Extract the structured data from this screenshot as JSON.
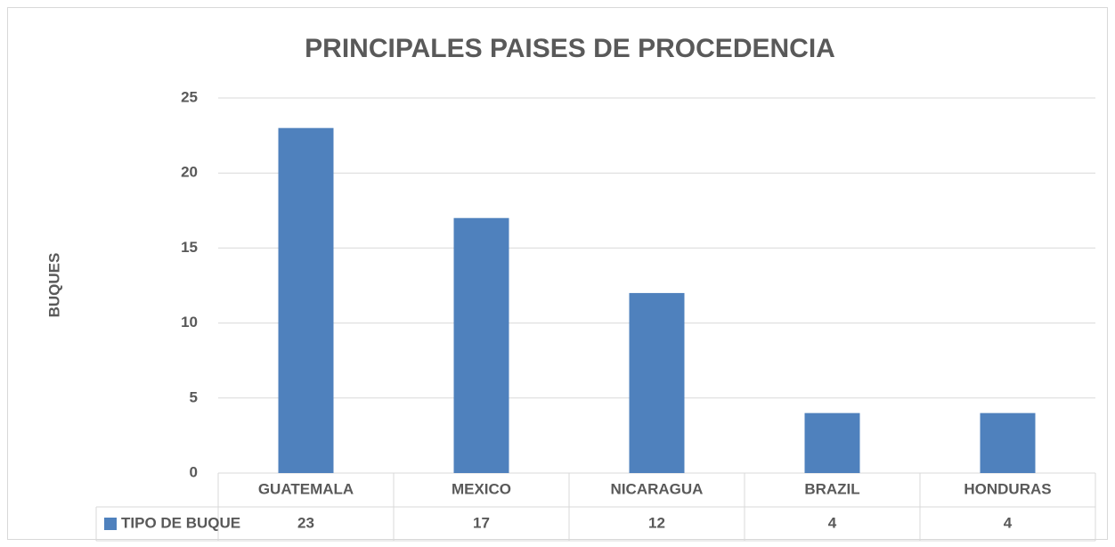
{
  "chart_data": {
    "type": "bar",
    "title": "PRINCIPALES PAISES DE PROCEDENCIA",
    "y_label": "BUQUES",
    "categories": [
      "GUATEMALA",
      "MEXICO",
      "NICARAGUA",
      "BRAZIL",
      "HONDURAS"
    ],
    "series": [
      {
        "name": "TIPO DE BUQUE",
        "color": "#4f81bd",
        "values": [
          23,
          17,
          12,
          4,
          4
        ]
      }
    ],
    "ylim": [
      0,
      25
    ],
    "yticks": [
      0,
      5,
      10,
      15,
      20,
      25
    ],
    "grid": true,
    "data_table": true
  }
}
